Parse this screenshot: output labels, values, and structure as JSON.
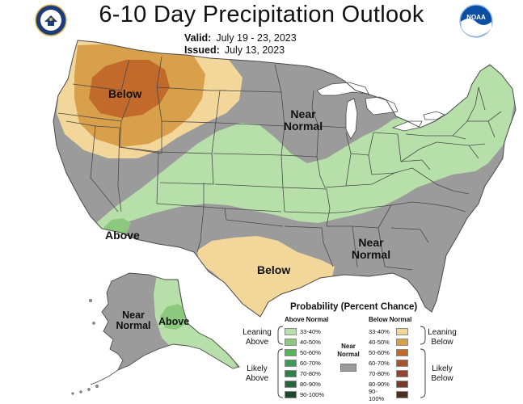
{
  "header": {
    "title": "6-10 Day Precipitation Outlook",
    "valid_label": "Valid:",
    "valid_value": "July 19 - 23, 2023",
    "issued_label": "Issued:",
    "issued_value": "July 13, 2023"
  },
  "logos": {
    "left": "commerce-seal-icon",
    "right": "noaa-logo-icon",
    "right_text": "NOAA"
  },
  "colors": {
    "near_normal": "#9b9b9b",
    "above_33_40": "#b7dfaa",
    "above_40_50": "#8cc97f",
    "below_33_40": "#f3d699",
    "below_40_50": "#d9a04c",
    "below_50_60": "#c26a2c",
    "water": "#ffffff",
    "borders": "#4a4a4a"
  },
  "map_labels": {
    "below_nw": "Below",
    "near_normal_north": "Near Normal",
    "above_sw": "Above",
    "below_tx": "Below",
    "near_normal_se": "Near Normal",
    "near_normal_ak": "Near Normal",
    "above_ak": "Above"
  },
  "legend": {
    "title": "Probability (Percent Chance)",
    "above_header": "Above Normal",
    "below_header": "Below Normal",
    "near_normal": "Near Normal",
    "leaning_above": "Leaning Above",
    "likely_above": "Likely Above",
    "leaning_below": "Leaning Below",
    "likely_below": "Likely Below",
    "above_bins": [
      {
        "label": "33-40%",
        "color": "#b7dfaa"
      },
      {
        "label": "40-50%",
        "color": "#8cc97f"
      },
      {
        "label": "50-60%",
        "color": "#56b559"
      },
      {
        "label": "60-70%",
        "color": "#3a9a56"
      },
      {
        "label": "70-80%",
        "color": "#2e7f48"
      },
      {
        "label": "80-90%",
        "color": "#25653a"
      },
      {
        "label": "90-100%",
        "color": "#1b4b2b"
      }
    ],
    "below_bins": [
      {
        "label": "33-40%",
        "color": "#f3d699"
      },
      {
        "label": "40-50%",
        "color": "#d9a04c"
      },
      {
        "label": "50-60%",
        "color": "#c26a2c"
      },
      {
        "label": "60-70%",
        "color": "#a9532e"
      },
      {
        "label": "70-80%",
        "color": "#94442f"
      },
      {
        "label": "80-90%",
        "color": "#7a3a2b"
      },
      {
        "label": "90-100%",
        "color": "#4f2f22"
      }
    ]
  }
}
